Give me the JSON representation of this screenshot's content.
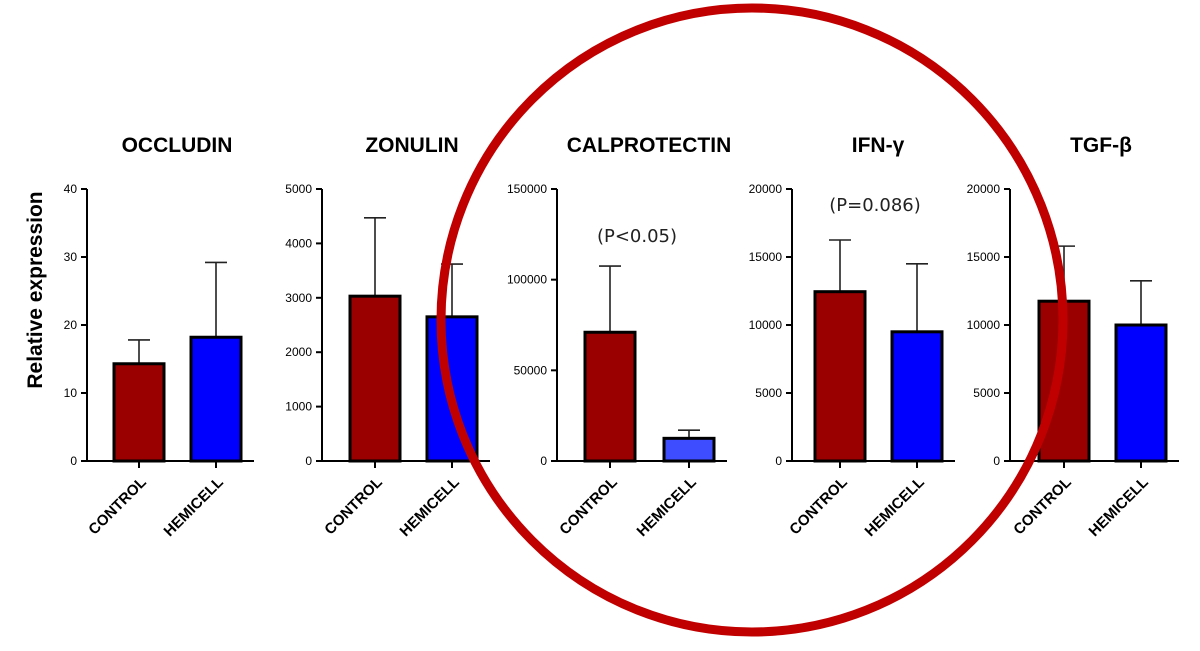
{
  "figure": {
    "ylabel": "Relative expression",
    "highlight_color": "#c00000"
  },
  "colors": {
    "control": "#9b0000",
    "hemicell": "#0000ff",
    "hemicell_light": "#3d4dff"
  },
  "chart_data": [
    {
      "type": "bar",
      "title": "OCCLUDIN",
      "categories": [
        "CONTROL",
        "HEMICELL"
      ],
      "values": [
        14.3,
        18.2
      ],
      "errors": [
        3.5,
        11.0
      ],
      "ylim": [
        0,
        40
      ],
      "yticks": [
        0,
        10,
        20,
        30,
        40
      ],
      "tick_labels": [
        "0",
        "10",
        "20",
        "30",
        "40"
      ],
      "annotation": ""
    },
    {
      "type": "bar",
      "title": "ZONULIN",
      "categories": [
        "CONTROL",
        "HEMICELL"
      ],
      "values": [
        3030,
        2650
      ],
      "errors": [
        1440,
        970
      ],
      "ylim": [
        0,
        5000
      ],
      "yticks": [
        0,
        1000,
        2000,
        3000,
        4000,
        5000
      ],
      "tick_labels": [
        "0",
        "1000",
        "2000",
        "3000",
        "4000",
        "5000"
      ],
      "annotation": ""
    },
    {
      "type": "bar",
      "title": "CALPROTECTIN",
      "categories": [
        "CONTROL",
        "HEMICELL"
      ],
      "values": [
        71000,
        12500
      ],
      "errors": [
        36500,
        4500
      ],
      "ylim": [
        0,
        150000
      ],
      "yticks": [
        0,
        50000,
        100000,
        150000
      ],
      "tick_labels": [
        "0",
        "50000",
        "100000",
        "150000"
      ],
      "annotation": "(P<0.05)"
    },
    {
      "type": "bar",
      "title": "IFN-γ",
      "categories": [
        "CONTROL",
        "HEMICELL"
      ],
      "values": [
        12450,
        9500
      ],
      "errors": [
        3800,
        5000
      ],
      "ylim": [
        0,
        20000
      ],
      "yticks": [
        0,
        5000,
        10000,
        15000,
        20000
      ],
      "tick_labels": [
        "0",
        "5000",
        "10000",
        "15000",
        "20000"
      ],
      "annotation": "(P=0.086)"
    },
    {
      "type": "bar",
      "title": "TGF-β",
      "categories": [
        "CONTROL",
        "HEMICELL"
      ],
      "values": [
        11750,
        10000
      ],
      "errors": [
        4050,
        3250
      ],
      "ylim": [
        0,
        20000
      ],
      "yticks": [
        0,
        5000,
        10000,
        15000,
        20000
      ],
      "tick_labels": [
        "0",
        "5000",
        "10000",
        "15000",
        "20000"
      ],
      "annotation": ""
    }
  ]
}
